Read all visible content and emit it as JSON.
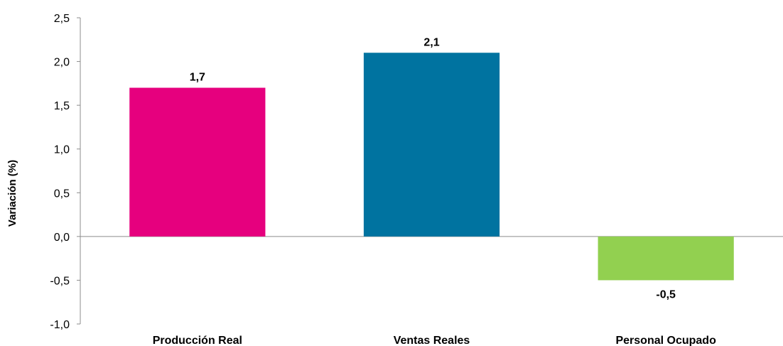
{
  "chart_data": {
    "type": "bar",
    "title": "",
    "xlabel": "",
    "ylabel": "Variación (%)",
    "categories": [
      "Producción Real",
      "Ventas Reales",
      "Personal Ocupado"
    ],
    "values": [
      1.7,
      2.1,
      -0.5
    ],
    "value_labels": [
      "1,7",
      "2,1",
      "-0,5"
    ],
    "colors": [
      "#e6007e",
      "#0073a0",
      "#92d050"
    ],
    "ylim": [
      -1.0,
      2.5
    ],
    "yticks": [
      2.5,
      2.0,
      1.5,
      1.0,
      0.5,
      0.0,
      -0.5,
      -1.0
    ],
    "ytick_labels": [
      "2,5",
      "2,0",
      "1,5",
      "1,0",
      "0,5",
      "0,0",
      "-0,5",
      "-1,0"
    ],
    "grid": false,
    "legend": "none"
  }
}
